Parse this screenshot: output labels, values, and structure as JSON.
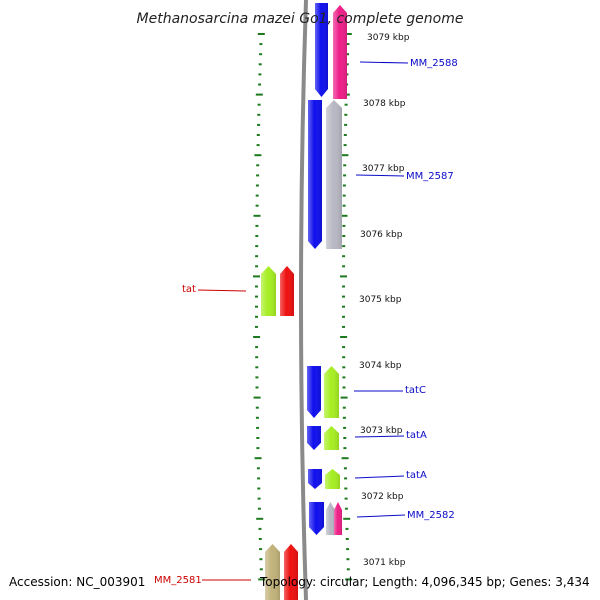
{
  "title": "Methanosarcina mazei Go1, complete genome",
  "footer": {
    "accession": "Accession: NC_003901",
    "topology": "Topology: circular; Length: 4,096,345 bp; Genes: 3,434"
  },
  "colors": {
    "backbone": "#8a8a8a",
    "tick": "#1e7a1e",
    "blue": "#1010ee",
    "gray": "#b8b8c4",
    "green": "#a6ee22",
    "red": "#ee1010",
    "pink": "#ee1f88",
    "khaki": "#c2b27a",
    "label_blue": "#0a0ac8",
    "label_red": "#cc0000"
  },
  "kbp_marks": [
    {
      "label": "3079 kbp"
    },
    {
      "label": "3078 kbp"
    },
    {
      "label": "3077 kbp"
    },
    {
      "label": "3076 kbp"
    },
    {
      "label": "3075 kbp"
    },
    {
      "label": "3074 kbp"
    },
    {
      "label": "3073 kbp"
    },
    {
      "label": "3072 kbp"
    },
    {
      "label": "3071 kbp"
    }
  ],
  "gene_labels": [
    {
      "text": "MM_2588",
      "color": "label_blue"
    },
    {
      "text": "MM_2587",
      "color": "label_blue"
    },
    {
      "text": "tat",
      "color": "label_red"
    },
    {
      "text": "tatC",
      "color": "label_blue"
    },
    {
      "text": "tatA",
      "color": "label_blue"
    },
    {
      "text": "tatA",
      "color": "label_blue"
    },
    {
      "text": "MM_2582",
      "color": "label_blue"
    },
    {
      "text": "MM_2581",
      "color": "label_red"
    }
  ],
  "genes": [
    {
      "color": "blue",
      "strand": "minus"
    },
    {
      "color": "pink",
      "strand": "plus"
    },
    {
      "color": "blue",
      "strand": "minus"
    },
    {
      "color": "gray",
      "strand": "plus"
    },
    {
      "color": "green",
      "strand": "plus"
    },
    {
      "color": "red",
      "strand": "plus"
    },
    {
      "color": "blue",
      "strand": "minus"
    },
    {
      "color": "green",
      "strand": "plus"
    },
    {
      "color": "blue",
      "strand": "minus"
    },
    {
      "color": "green",
      "strand": "plus"
    },
    {
      "color": "blue",
      "strand": "minus"
    },
    {
      "color": "green",
      "strand": "plus"
    },
    {
      "color": "blue",
      "strand": "minus"
    },
    {
      "color": "gray",
      "strand": "plus"
    },
    {
      "color": "pink",
      "strand": "plus"
    },
    {
      "color": "khaki",
      "strand": "plus"
    },
    {
      "color": "red",
      "strand": "plus"
    }
  ]
}
